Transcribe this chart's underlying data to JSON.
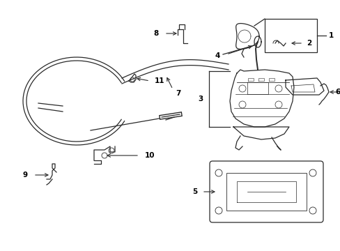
{
  "background_color": "#ffffff",
  "line_color": "#2a2a2a",
  "text_color": "#000000",
  "figsize": [
    4.89,
    3.6
  ],
  "dpi": 100,
  "lw": 0.9,
  "fontsize": 7.5
}
